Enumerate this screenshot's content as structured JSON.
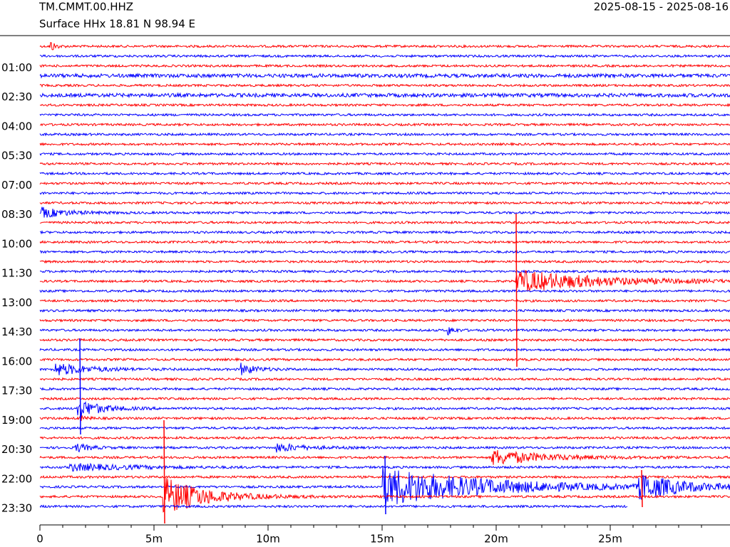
{
  "chart_data": {
    "type": "helicorder",
    "title": "TM.CMMT.00.HHZ",
    "subtitle": "Surface HHx  18.81 N 98.94 E",
    "date_range": "2025-08-15 - 2025-08-16",
    "colors": [
      "#ff0000",
      "#0000ff"
    ],
    "ylim": [
      0,
      23.5
    ],
    "yticks": [
      {
        "value": 1,
        "label": "01:00"
      },
      {
        "value": 2.5,
        "label": "02:30"
      },
      {
        "value": 4,
        "label": "04:00"
      },
      {
        "value": 5.5,
        "label": "05:30"
      },
      {
        "value": 7,
        "label": "07:00"
      },
      {
        "value": 8.5,
        "label": "08:30"
      },
      {
        "value": 10,
        "label": "10:00"
      },
      {
        "value": 11.5,
        "label": "11:30"
      },
      {
        "value": 13,
        "label": "13:00"
      },
      {
        "value": 14.5,
        "label": "14:30"
      },
      {
        "value": 16,
        "label": "16:00"
      },
      {
        "value": 17.5,
        "label": "17:30"
      },
      {
        "value": 19,
        "label": "19:00"
      },
      {
        "value": 20.5,
        "label": "20:30"
      },
      {
        "value": 22,
        "label": "22:00"
      },
      {
        "value": 23.5,
        "label": "23:30"
      }
    ],
    "xlim": [
      0,
      30
    ],
    "xticks": [
      0,
      {
        "value": 5,
        "label": "5m"
      },
      {
        "value": 10,
        "label": "10m"
      },
      {
        "value": 15,
        "label": "15m"
      },
      {
        "value": 20,
        "label": "20m"
      },
      {
        "value": 25,
        "label": "25m"
      }
    ]
  }
}
